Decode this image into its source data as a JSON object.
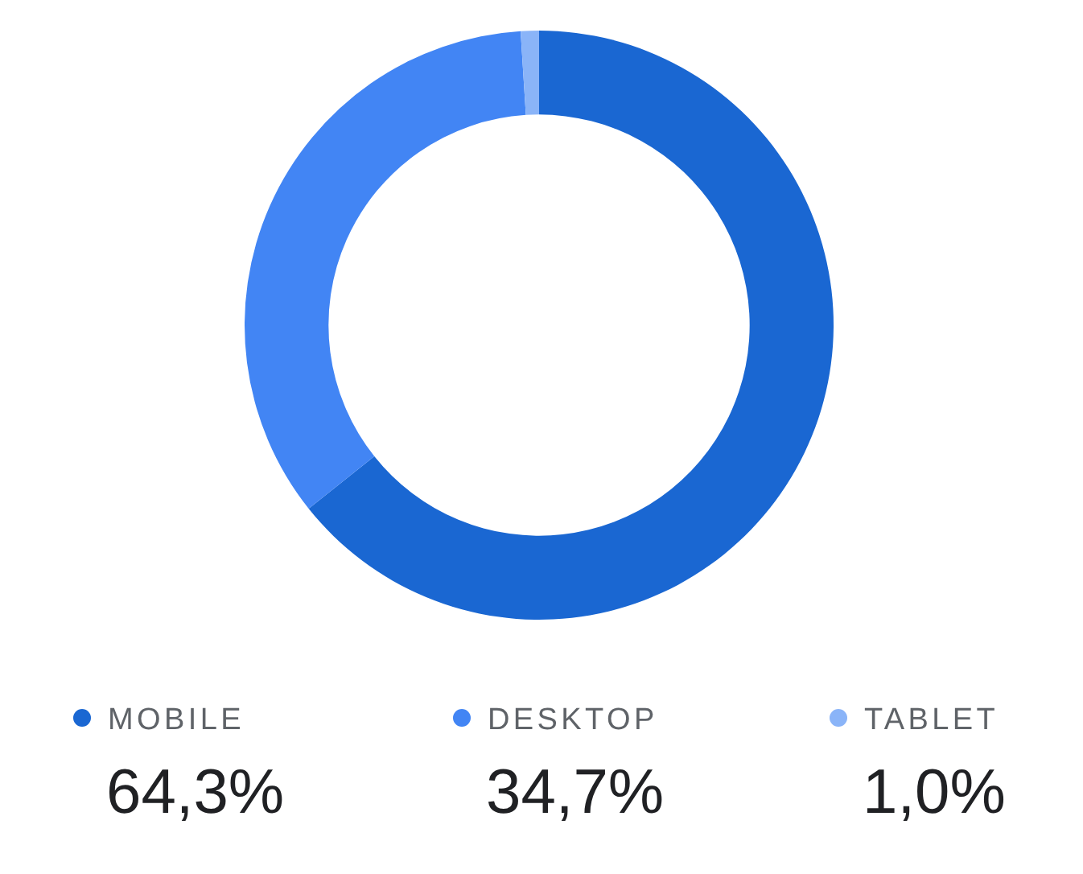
{
  "chart_data": {
    "type": "donut",
    "categories": [
      "MOBILE",
      "DESKTOP",
      "TABLET"
    ],
    "values": [
      64.3,
      34.7,
      1.0
    ],
    "colors": [
      "#1a67d2",
      "#4285f4",
      "#8ab4f8"
    ],
    "value_labels": [
      "64,3%",
      "34,7%",
      "1,0%"
    ],
    "legend": "bottom"
  }
}
